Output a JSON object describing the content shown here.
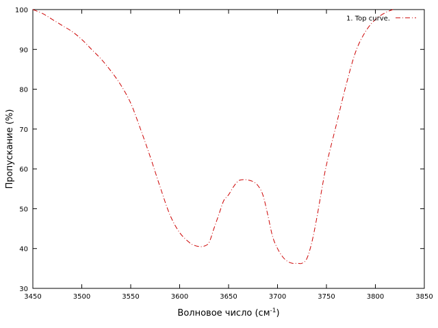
{
  "chart_data": {
    "type": "line",
    "xlabel": "Волновое число (см",
    "xlabel_sup": "-1",
    "xlabel_close": ")",
    "ylabel": "Пропускание (%)",
    "xlim": [
      3450,
      3850
    ],
    "ylim": [
      30,
      100
    ],
    "x_ticks": [
      3450,
      3500,
      3550,
      3600,
      3650,
      3700,
      3750,
      3800,
      3850
    ],
    "y_ticks": [
      30,
      40,
      50,
      60,
      70,
      80,
      90,
      100
    ],
    "grid": false,
    "legend_position": "top-right",
    "series": [
      {
        "name": "1. Top curve.",
        "color": "#cc0000",
        "line_style": "dash-dot",
        "x": [
          3450,
          3460,
          3470,
          3480,
          3490,
          3500,
          3510,
          3520,
          3530,
          3540,
          3550,
          3560,
          3570,
          3580,
          3590,
          3600,
          3610,
          3615,
          3620,
          3625,
          3630,
          3635,
          3640,
          3645,
          3650,
          3655,
          3660,
          3665,
          3670,
          3675,
          3680,
          3685,
          3690,
          3695,
          3700,
          3705,
          3710,
          3715,
          3720,
          3725,
          3730,
          3735,
          3740,
          3745,
          3750,
          3760,
          3770,
          3780,
          3790,
          3800,
          3810,
          3818
        ],
        "y": [
          100,
          99,
          97.5,
          96,
          94.5,
          92.5,
          90,
          87.5,
          84.5,
          81,
          76.5,
          70,
          63,
          55.5,
          48.5,
          44,
          41.5,
          40.8,
          40.5,
          40.6,
          41.5,
          45,
          48.5,
          52,
          53.5,
          55.5,
          57,
          57.3,
          57.2,
          56.8,
          55.8,
          53.5,
          48.5,
          43,
          40,
          38,
          36.8,
          36.3,
          36.3,
          36.3,
          37.5,
          41.5,
          47.5,
          54.5,
          61,
          71,
          81,
          89.5,
          94.5,
          97.5,
          99.2,
          100
        ]
      }
    ]
  }
}
